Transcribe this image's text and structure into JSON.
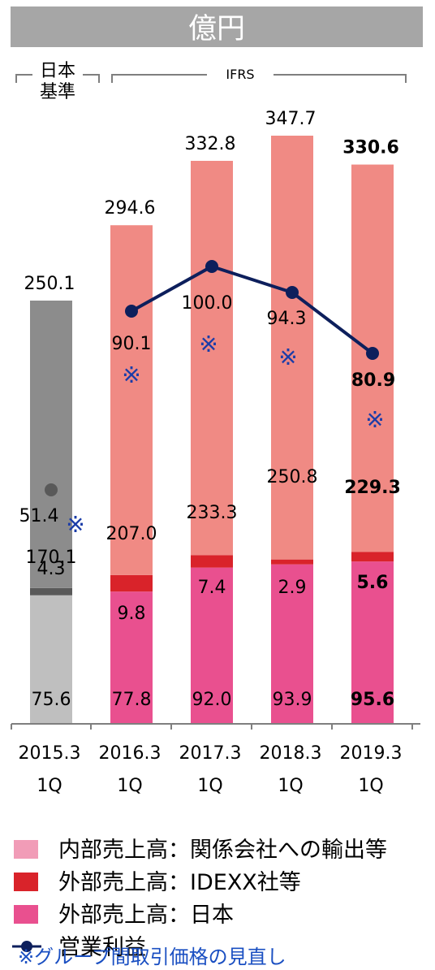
{
  "header": {
    "unit": "億円"
  },
  "standards": {
    "jgaap_line1": "日本",
    "jgaap_line2": "基準",
    "ifrs": "IFRS"
  },
  "revision_mark": "※",
  "colors": {
    "header_bg": "#a6a6a6",
    "jgaap_inner": "#8c8c8c",
    "jgaap_idexx": "#595959",
    "jgaap_japan": "#bfbfbf",
    "inner": "#f08a84",
    "idexx": "#d9232a",
    "japan": "#e9508f",
    "op_line": "#0d1f5c",
    "op_dot_jgaap": "#595959",
    "mark": "#1a3ca8",
    "legend_inner": "#f19cb7"
  },
  "chart_data": {
    "type": "bar",
    "stacked": true,
    "categories": [
      {
        "year": "2015.3",
        "q": "1Q"
      },
      {
        "year": "2016.3",
        "q": "1Q"
      },
      {
        "year": "2017.3",
        "q": "1Q"
      },
      {
        "year": "2018.3",
        "q": "1Q"
      },
      {
        "year": "2019.3",
        "q": "1Q"
      }
    ],
    "series": [
      {
        "name": "外部売上高：日本",
        "values": [
          75.6,
          77.8,
          92.0,
          93.9,
          95.6
        ]
      },
      {
        "name": "外部売上高：IDEXX社等",
        "values": [
          4.3,
          9.8,
          7.4,
          2.9,
          5.6
        ]
      },
      {
        "name": "内部売上高：関係会社への輸出等",
        "values": [
          170.1,
          207.0,
          233.3,
          250.8,
          229.3
        ]
      }
    ],
    "totals": [
      250.1,
      294.6,
      332.8,
      347.7,
      330.6
    ],
    "line": {
      "name": "営業利益",
      "values": [
        51.4,
        90.1,
        100.0,
        94.3,
        80.9
      ]
    },
    "ylim": [
      0,
      360
    ]
  },
  "legend": {
    "inner": "内部売上高：関係会社への輸出等",
    "idexx": "外部売上高：IDEXX社等",
    "japan": "外部売上高：日本",
    "op": "営業利益"
  },
  "footnote": "※グループ間取引価格の見直し"
}
